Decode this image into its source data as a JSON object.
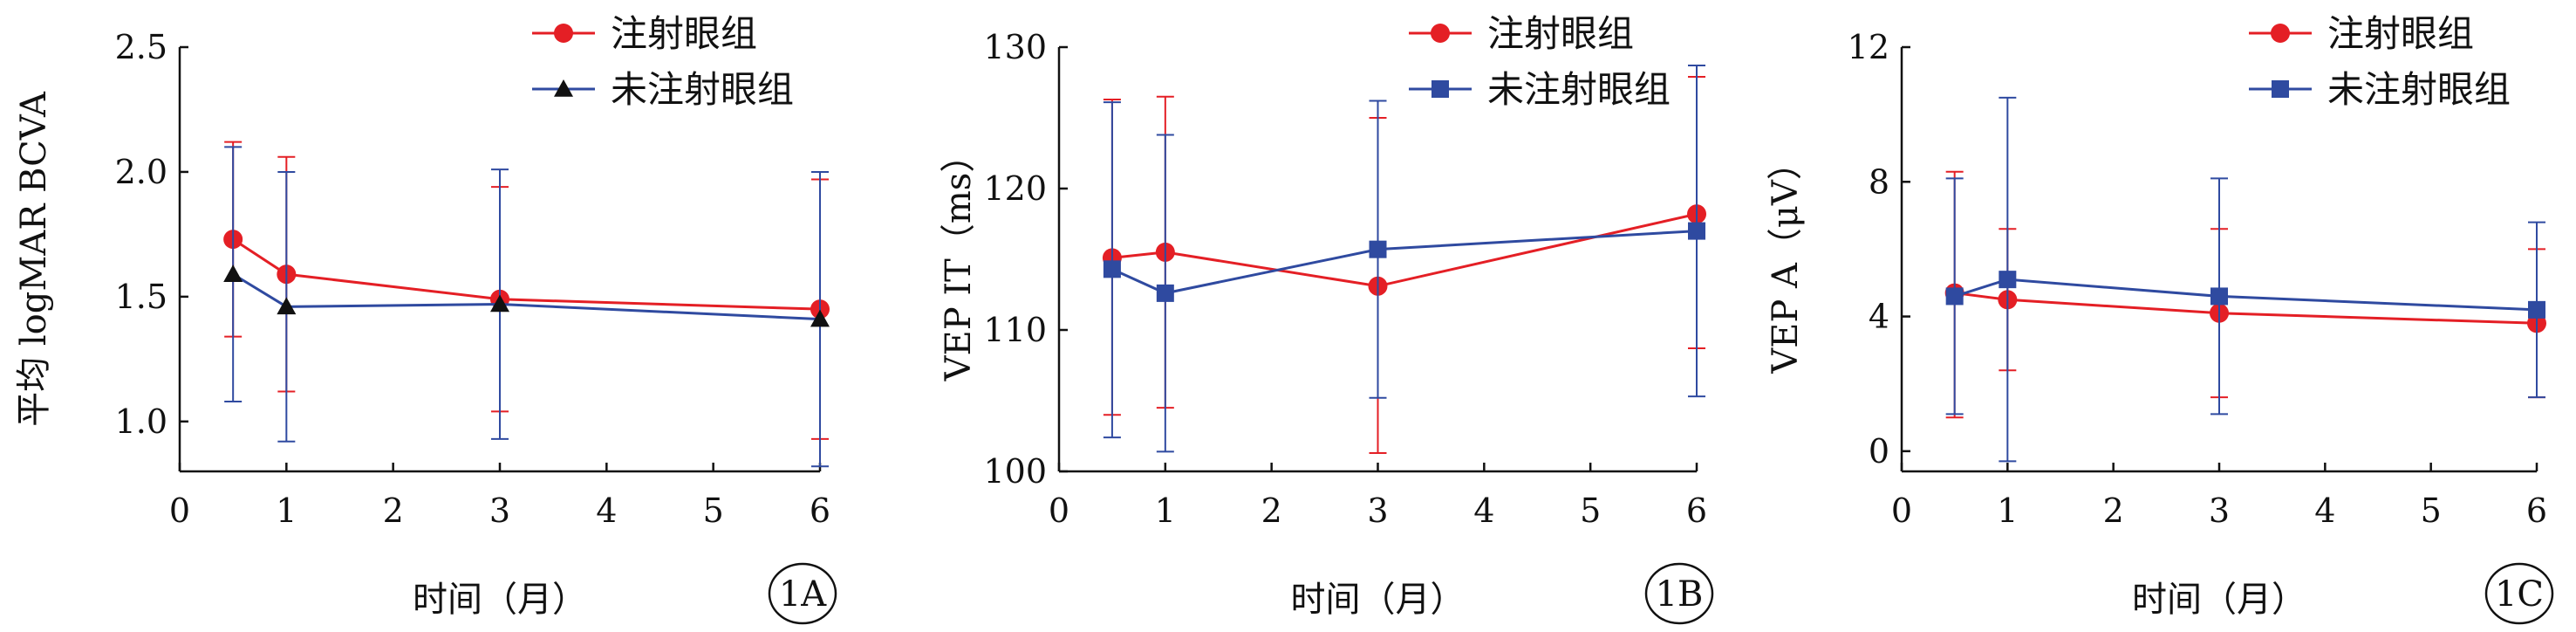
{
  "colors": {
    "injected": "#e41f25",
    "uninjected": "#2f4aa0",
    "axis": "#111111"
  },
  "chart_data": [
    {
      "type": "line",
      "panel_label": "1A",
      "xlabel": "时间（月）",
      "ylabel": "平均 logMAR BCVA",
      "xlim": [
        0,
        6
      ],
      "ylim": [
        0.8,
        2.5
      ],
      "xticks": [
        0,
        1,
        2,
        3,
        4,
        5,
        6
      ],
      "yticks": [
        1.0,
        1.5,
        2.0,
        2.5
      ],
      "ytick_labels": [
        "1.0",
        "1.5",
        "2.0",
        "2.5"
      ],
      "legend_position": "top-right",
      "series": [
        {
          "name": "注射眼组",
          "marker": "circle",
          "color": "#e41f25",
          "x": [
            0.5,
            1,
            3,
            6
          ],
          "y": [
            1.73,
            1.59,
            1.49,
            1.45
          ],
          "err_low": [
            1.34,
            1.12,
            1.04,
            0.93
          ],
          "err_high": [
            2.12,
            2.06,
            1.94,
            1.97
          ]
        },
        {
          "name": "未注射眼组",
          "marker": "triangle",
          "color": "#2f4aa0",
          "x": [
            0.5,
            1,
            3,
            6
          ],
          "y": [
            1.59,
            1.46,
            1.47,
            1.41
          ],
          "err_low": [
            1.08,
            0.92,
            0.93,
            0.82
          ],
          "err_high": [
            2.1,
            2.0,
            2.01,
            2.0
          ]
        }
      ]
    },
    {
      "type": "line",
      "panel_label": "1B",
      "xlabel": "时间（月）",
      "ylabel": "VEP IT（ms）",
      "xlim": [
        0,
        6
      ],
      "ylim": [
        100,
        130
      ],
      "xticks": [
        0,
        1,
        2,
        3,
        4,
        5,
        6
      ],
      "yticks": [
        100,
        110,
        120,
        130
      ],
      "ytick_labels": [
        "100",
        "110",
        "120",
        "130"
      ],
      "legend_position": "top-right",
      "series": [
        {
          "name": "注射眼组",
          "marker": "circle",
          "color": "#e41f25",
          "x": [
            0.5,
            1,
            3,
            6
          ],
          "y": [
            115.1,
            115.5,
            113.1,
            118.2
          ],
          "err_low": [
            104.0,
            104.5,
            101.3,
            108.7
          ],
          "err_high": [
            126.3,
            126.5,
            125.0,
            127.9
          ]
        },
        {
          "name": "未注射眼组",
          "marker": "square",
          "color": "#2f4aa0",
          "x": [
            0.5,
            1,
            3,
            6
          ],
          "y": [
            114.3,
            112.6,
            115.7,
            117.0
          ],
          "err_low": [
            102.4,
            101.4,
            105.2,
            105.3
          ],
          "err_high": [
            126.1,
            123.8,
            126.2,
            128.7
          ]
        }
      ]
    },
    {
      "type": "line",
      "panel_label": "1C",
      "xlabel": "时间（月）",
      "ylabel": "VEP A（μV）",
      "xlim": [
        0,
        6
      ],
      "ylim": [
        -0.6,
        12
      ],
      "xticks": [
        0,
        1,
        2,
        3,
        4,
        5,
        6
      ],
      "yticks": [
        0,
        4,
        8,
        12
      ],
      "ytick_labels": [
        "0",
        "4",
        "8",
        "12"
      ],
      "legend_position": "top-right",
      "series": [
        {
          "name": "注射眼组",
          "marker": "circle",
          "color": "#e41f25",
          "x": [
            0.5,
            1,
            3,
            6
          ],
          "y": [
            4.7,
            4.5,
            4.1,
            3.8
          ],
          "err_low": [
            1.0,
            2.4,
            1.6,
            1.6
          ],
          "err_high": [
            8.3,
            6.6,
            6.6,
            6.0
          ]
        },
        {
          "name": "未注射眼组",
          "marker": "square",
          "color": "#2f4aa0",
          "x": [
            0.5,
            1,
            3,
            6
          ],
          "y": [
            4.6,
            5.1,
            4.6,
            4.2
          ],
          "err_low": [
            1.1,
            -0.3,
            1.1,
            1.6
          ],
          "err_high": [
            8.1,
            10.5,
            8.1,
            6.8
          ]
        }
      ]
    }
  ]
}
